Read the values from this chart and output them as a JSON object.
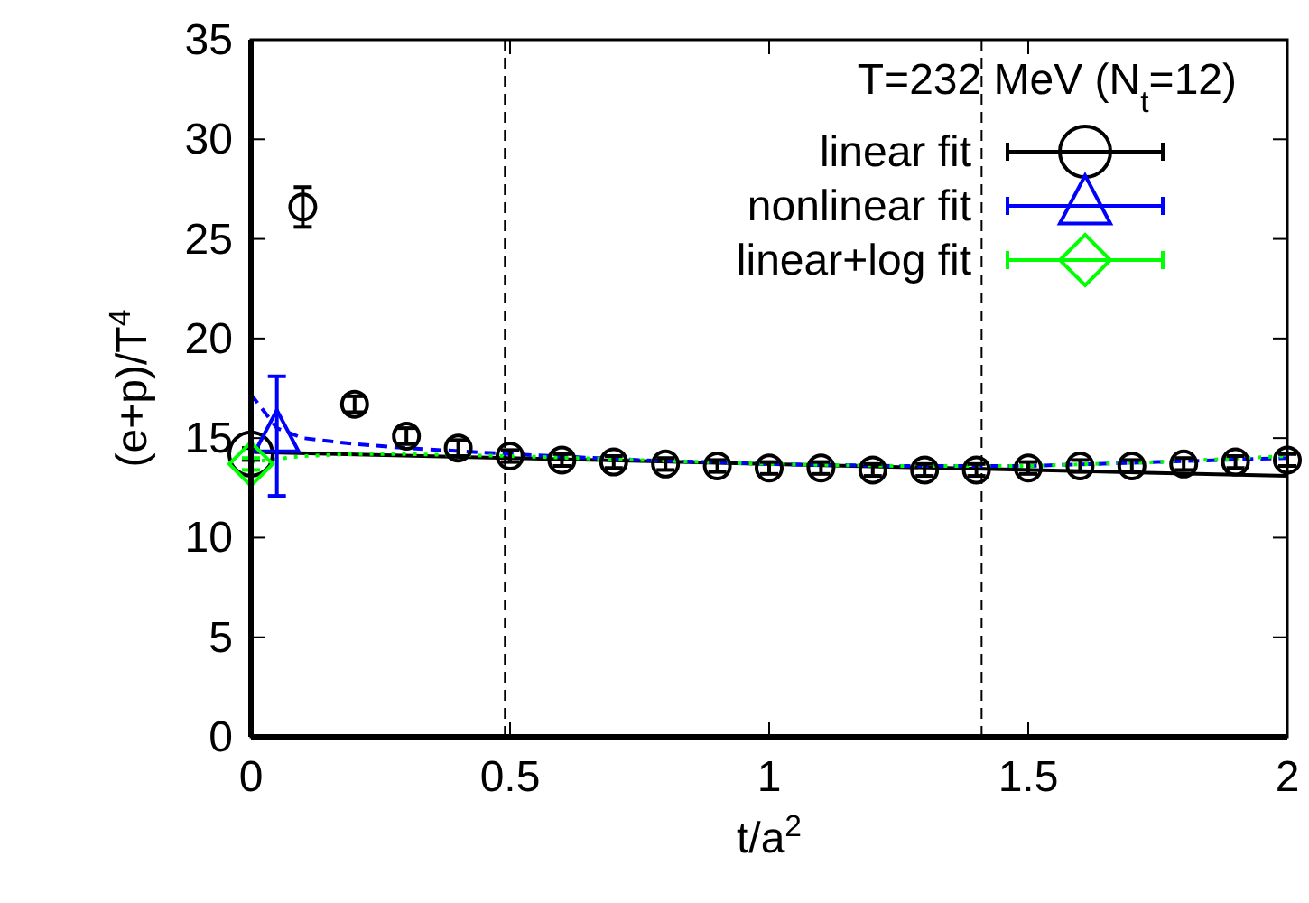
{
  "chart_data": {
    "type": "scatter",
    "xlabel": "t/a$^{2}$",
    "ylabel": "(e+p)/T$^{4}$",
    "legend_title": "T=232 MeV (N$_{t}$=12)",
    "legend": "top right",
    "grid": false,
    "xlim": [
      0,
      2
    ],
    "xticks": [
      0,
      0.5,
      1,
      1.5,
      2
    ],
    "ylim": [
      0,
      35
    ],
    "yticks": [
      0,
      5,
      10,
      15,
      20,
      25,
      30,
      35
    ],
    "ref_lines": [
      {
        "axis": "x",
        "value": 0.49,
        "color": "#000000",
        "line_style": "dashed"
      },
      {
        "axis": "x",
        "value": 1.41,
        "color": "#000000",
        "line_style": "dashed"
      }
    ],
    "series": [
      {
        "color": "#000000",
        "marker": "circle",
        "x": [
          0.1,
          0.2,
          0.3,
          0.4,
          0.5,
          0.6,
          0.7,
          0.8,
          0.9,
          1.0,
          1.1,
          1.2,
          1.3,
          1.4,
          1.5,
          1.6,
          1.7,
          1.8,
          1.9,
          2.0
        ],
        "values": [
          26.6,
          16.7,
          15.1,
          14.5,
          14.1,
          13.9,
          13.8,
          13.7,
          13.6,
          13.5,
          13.5,
          13.4,
          13.4,
          13.4,
          13.5,
          13.6,
          13.6,
          13.7,
          13.8,
          13.9
        ],
        "errors": [
          1,
          0.4,
          0.4,
          0.4,
          0.3,
          0.3,
          0.3,
          0.3,
          0.3,
          0.3,
          0.3,
          0.3,
          0.3,
          0.3,
          0.3,
          0.3,
          0.3,
          0.3,
          0.3,
          0.3
        ]
      },
      {
        "type": "line",
        "color": "#000000",
        "line_style": "solid",
        "x": [
          0,
          2
        ],
        "values": [
          14.3,
          13.1
        ]
      },
      {
        "type": "line",
        "color": "#0000ff",
        "line_style": "dashed",
        "x": [
          0,
          0.05,
          0.1,
          0.2,
          0.3,
          0.5,
          0.75,
          1,
          1.25,
          1.5,
          1.75,
          2
        ],
        "values": [
          17.2,
          15.5,
          15.0,
          14.7,
          14.5,
          14.2,
          13.9,
          13.7,
          13.6,
          13.6,
          13.8,
          14.0
        ]
      },
      {
        "type": "line",
        "color": "#00ff00",
        "line_style": "dotted",
        "x": [
          0,
          0.1,
          0.2,
          0.3,
          0.5,
          0.75,
          1,
          1.25,
          1.5,
          1.75,
          2
        ],
        "values": [
          13.8,
          14.1,
          14.2,
          14.2,
          14.1,
          13.9,
          13.7,
          13.6,
          13.6,
          13.8,
          14.1
        ]
      },
      {
        "name": "linear fit",
        "color": "#000000",
        "marker": "circle",
        "x": [
          0
        ],
        "values": [
          14.2
        ],
        "errors": [
          0.3
        ]
      },
      {
        "name": "nonlinear fit",
        "color": "#0000ff",
        "marker": "triangle",
        "x": [
          0.05
        ],
        "values": [
          15.1
        ],
        "errors": [
          3
        ]
      },
      {
        "name": "linear+log fit",
        "color": "#00ff00",
        "marker": "diamond",
        "x": [
          0
        ],
        "values": [
          13.7
        ],
        "errors": [
          0.3
        ]
      }
    ]
  }
}
